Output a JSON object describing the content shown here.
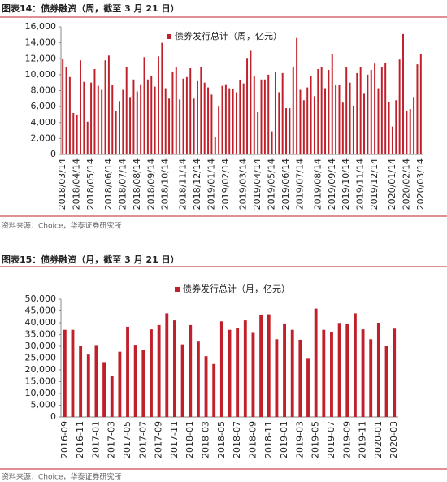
{
  "chart_data": [
    {
      "type": "bar",
      "title": "图表14：债券融资（周，截至 3 月 21 日）",
      "source": "资料来源：Choice，华泰证券研究所",
      "categories": [
        "2018/03/14",
        null,
        null,
        null,
        "2018/04/14",
        null,
        null,
        null,
        "2018/05/14",
        null,
        null,
        null,
        null,
        "2018/06/14",
        null,
        null,
        null,
        "2018/07/14",
        null,
        null,
        null,
        "2018/08/14",
        null,
        null,
        null,
        "2018/09/14",
        null,
        null,
        null,
        "2018/10/14",
        null,
        null,
        null,
        null,
        "2018/11/14",
        null,
        null,
        null,
        "2018/12/14",
        null,
        null,
        null,
        "2019/01/14",
        null,
        null,
        null,
        "2019/02/14",
        null,
        null,
        null,
        null,
        "2019/03/14",
        null,
        null,
        null,
        "2019/04/14",
        null,
        null,
        null,
        "2019/05/14",
        null,
        null,
        null,
        "2019/06/14",
        null,
        null,
        null,
        "2019/07/14",
        null,
        null,
        null,
        null,
        "2019/08/14",
        null,
        null,
        null,
        "2019/09/14",
        null,
        null,
        null,
        "2019/10/14",
        null,
        null,
        null,
        "2019/11/14",
        null,
        null,
        null,
        "2019/12/14",
        null,
        null,
        null,
        null,
        "2020/01/14",
        null,
        null,
        null,
        "2020/02/14",
        null,
        null,
        null,
        "2020/03/14"
      ],
      "series": [
        {
          "name": "债券发行总计（周，亿元）",
          "color": "#c0202a",
          "values": [
            12000,
            11000,
            9700,
            5200,
            5000,
            11800,
            9100,
            4100,
            9000,
            10700,
            8600,
            8100,
            11800,
            12400,
            8700,
            5400,
            6700,
            8100,
            11000,
            7200,
            9400,
            7900,
            8800,
            12200,
            9400,
            9800,
            8500,
            12300,
            14000,
            8300,
            7000,
            10400,
            11000,
            6900,
            9500,
            9700,
            10800,
            7000,
            9200,
            11000,
            9000,
            8400,
            7500,
            2200,
            6000,
            8600,
            8800,
            8300,
            8200,
            7800,
            9300,
            8900,
            12100,
            13000,
            9800,
            5300,
            9400,
            9400,
            10000,
            2900,
            10300,
            7800,
            10200,
            5800,
            5800,
            11000,
            14600,
            8100,
            6800,
            8400,
            9800,
            7300,
            10700,
            11000,
            8300,
            10600,
            12600,
            8700,
            8700,
            6500,
            10900,
            9000,
            6100,
            10200,
            11000,
            7600,
            10000,
            10600,
            11400,
            8300,
            10900,
            11500,
            6600,
            3500,
            6800,
            11900,
            15100,
            5400,
            5700,
            7200,
            11300,
            12600
          ]
        }
      ],
      "ylim": [
        0,
        16000
      ],
      "yticks": [
        0,
        {
          "value": 2000,
          "label": "2,000"
        },
        {
          "value": 4000,
          "label": "4,000"
        },
        {
          "value": 6000,
          "label": "6,000"
        },
        {
          "value": 8000,
          "label": "8,000"
        },
        {
          "value": 10000,
          "label": "10,000"
        },
        {
          "value": 12000,
          "label": "12,000"
        },
        {
          "value": 14000,
          "label": "14,000"
        },
        {
          "value": 16000,
          "label": "16,000"
        }
      ]
    },
    {
      "type": "bar",
      "title": "图表15：债券融资（月，截至 3 月 21 日）",
      "source": "资料来源：Choice，华泰证券研究所",
      "categories": [
        "2016-09",
        null,
        "2016-11",
        null,
        "2017-01",
        null,
        "2017-03",
        null,
        "2017-05",
        null,
        "2017-07",
        null,
        "2017-09",
        null,
        "2017-11",
        null,
        "2018-01",
        null,
        "2018-03",
        null,
        "2018-05",
        null,
        "2018-07",
        null,
        "2018-09",
        null,
        "2018-11",
        null,
        "2019-01",
        null,
        "2019-03",
        null,
        "2019-05",
        null,
        "2019-07",
        null,
        "2019-09",
        null,
        "2019-11",
        null,
        "2020-01",
        null,
        "2020-03"
      ],
      "series": [
        {
          "name": "债券发行总计（月，亿元）",
          "color": "#c0202a",
          "values": [
            37000,
            37000,
            30000,
            26500,
            30200,
            23300,
            17500,
            27700,
            38300,
            30300,
            28400,
            37200,
            39000,
            44000,
            41000,
            30800,
            39000,
            32000,
            25800,
            22500,
            40600,
            37000,
            37600,
            41000,
            35700,
            43400,
            43600,
            33000,
            39700,
            37000,
            32800,
            24700,
            46000,
            37000,
            36200,
            39900,
            39500,
            44000,
            37200,
            33000,
            40000,
            30000,
            37500
          ]
        }
      ],
      "ylim": [
        0,
        50000
      ],
      "yticks": [
        0,
        {
          "value": 5000,
          "label": "5,000"
        },
        {
          "value": 10000,
          "label": "10,000"
        },
        {
          "value": 15000,
          "label": "15,000"
        },
        {
          "value": 20000,
          "label": "20,000"
        },
        {
          "value": 25000,
          "label": "25,000"
        },
        {
          "value": 30000,
          "label": "30,000"
        },
        {
          "value": 35000,
          "label": "35,000"
        },
        {
          "value": 40000,
          "label": "40,000"
        },
        {
          "value": 45000,
          "label": "45,000"
        },
        {
          "value": 50000,
          "label": "50,000"
        }
      ]
    }
  ]
}
